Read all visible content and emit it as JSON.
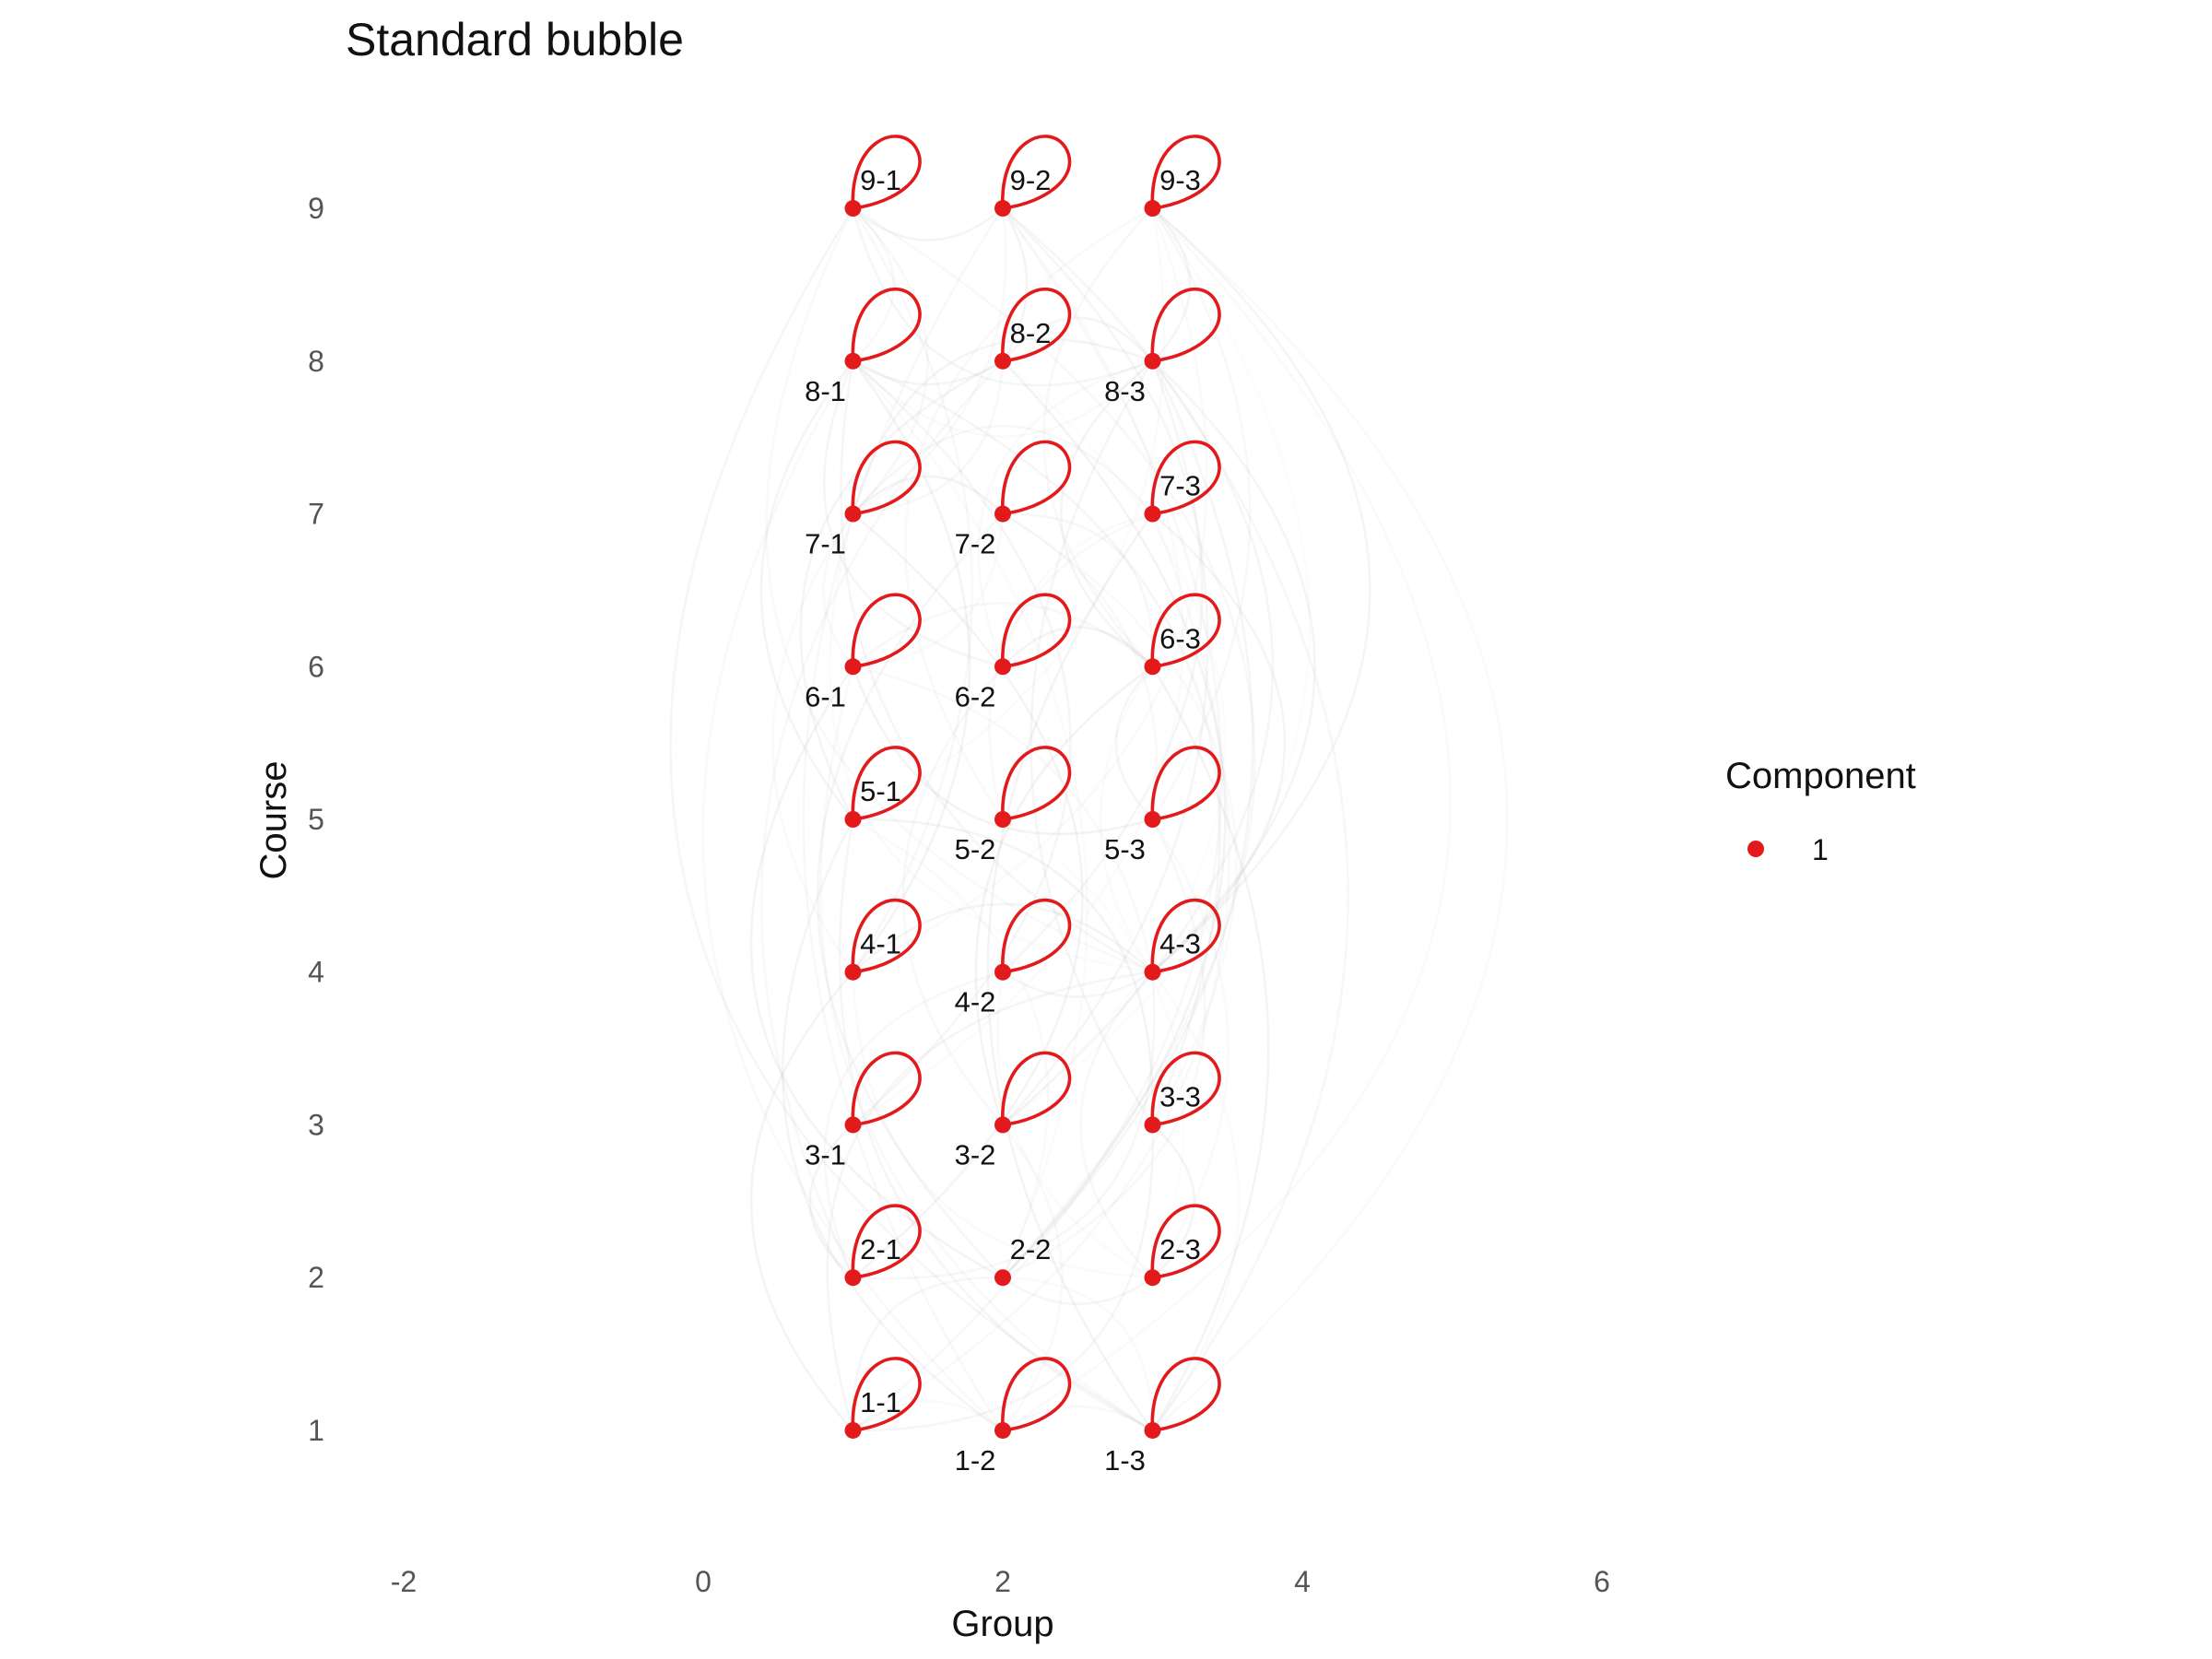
{
  "chart_data": {
    "type": "scatter",
    "title": "Standard bubble",
    "xlabel": "Group",
    "ylabel": "Course",
    "xlim": [
      -2,
      6
    ],
    "ylim": [
      0.3,
      9.7
    ],
    "x_ticks": [
      -2,
      0,
      2,
      4,
      6
    ],
    "y_ticks": [
      1,
      2,
      3,
      4,
      5,
      6,
      7,
      8,
      9
    ],
    "grid": false,
    "legend": {
      "title": "Component",
      "position": "right",
      "entries": [
        {
          "label": "1",
          "color": "#e31a1c"
        }
      ]
    },
    "node_color": "#e31a1c",
    "edge_color": "#bbbbbb",
    "nodes": [
      {
        "label": "1-1",
        "x": 1,
        "y": 1,
        "label_pos": "above",
        "loop": true
      },
      {
        "label": "1-2",
        "x": 2,
        "y": 1,
        "label_pos": "below",
        "loop": true
      },
      {
        "label": "1-3",
        "x": 3,
        "y": 1,
        "label_pos": "below",
        "loop": true
      },
      {
        "label": "2-1",
        "x": 1,
        "y": 2,
        "label_pos": "above",
        "loop": true
      },
      {
        "label": "2-2",
        "x": 2,
        "y": 2,
        "label_pos": "above",
        "loop": false
      },
      {
        "label": "2-3",
        "x": 3,
        "y": 2,
        "label_pos": "above",
        "loop": true
      },
      {
        "label": "3-1",
        "x": 1,
        "y": 3,
        "label_pos": "below",
        "loop": true
      },
      {
        "label": "3-2",
        "x": 2,
        "y": 3,
        "label_pos": "below",
        "loop": true
      },
      {
        "label": "3-3",
        "x": 3,
        "y": 3,
        "label_pos": "above",
        "loop": true
      },
      {
        "label": "4-1",
        "x": 1,
        "y": 4,
        "label_pos": "above",
        "loop": true
      },
      {
        "label": "4-2",
        "x": 2,
        "y": 4,
        "label_pos": "below",
        "loop": true
      },
      {
        "label": "4-3",
        "x": 3,
        "y": 4,
        "label_pos": "above",
        "loop": true
      },
      {
        "label": "5-1",
        "x": 1,
        "y": 5,
        "label_pos": "above",
        "loop": true
      },
      {
        "label": "5-2",
        "x": 2,
        "y": 5,
        "label_pos": "below",
        "loop": true
      },
      {
        "label": "5-3",
        "x": 3,
        "y": 5,
        "label_pos": "below",
        "loop": true
      },
      {
        "label": "6-1",
        "x": 1,
        "y": 6,
        "label_pos": "below",
        "loop": true
      },
      {
        "label": "6-2",
        "x": 2,
        "y": 6,
        "label_pos": "below",
        "loop": true
      },
      {
        "label": "6-3",
        "x": 3,
        "y": 6,
        "label_pos": "above",
        "loop": true
      },
      {
        "label": "7-1",
        "x": 1,
        "y": 7,
        "label_pos": "below",
        "loop": true
      },
      {
        "label": "7-2",
        "x": 2,
        "y": 7,
        "label_pos": "below",
        "loop": true
      },
      {
        "label": "7-3",
        "x": 3,
        "y": 7,
        "label_pos": "above",
        "loop": true
      },
      {
        "label": "8-1",
        "x": 1,
        "y": 8,
        "label_pos": "below",
        "loop": true
      },
      {
        "label": "8-2",
        "x": 2,
        "y": 8,
        "label_pos": "above",
        "loop": true
      },
      {
        "label": "8-3",
        "x": 3,
        "y": 8,
        "label_pos": "below",
        "loop": true
      },
      {
        "label": "9-1",
        "x": 1,
        "y": 9,
        "label_pos": "above",
        "loop": true
      },
      {
        "label": "9-2",
        "x": 2,
        "y": 9,
        "label_pos": "above",
        "loop": true
      },
      {
        "label": "9-3",
        "x": 3,
        "y": 9,
        "label_pos": "above",
        "loop": true
      }
    ]
  }
}
